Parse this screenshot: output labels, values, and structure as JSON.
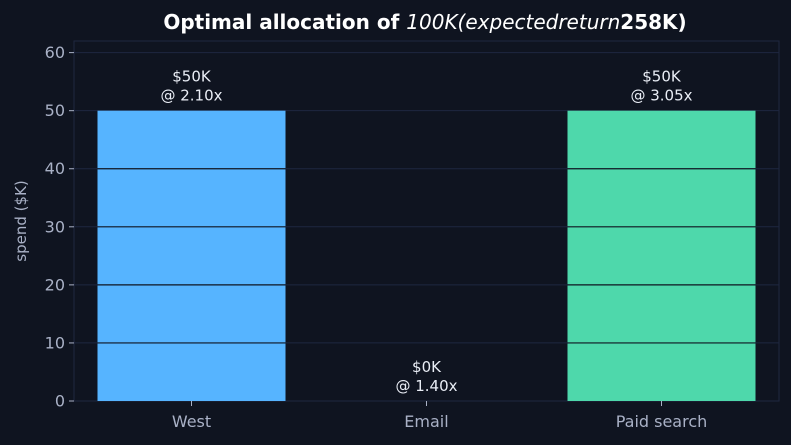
{
  "chart_data": {
    "type": "bar",
    "title": {
      "prefix": "Optimal allocation of ",
      "math": "100K(expectedreturn",
      "suffix": "258K)"
    },
    "ylabel": "spend ($K)",
    "xlabel": "",
    "ylim": [
      0,
      62
    ],
    "yticks": [
      0,
      10,
      20,
      30,
      40,
      50,
      60
    ],
    "grid": true,
    "categories": [
      "West",
      "Email",
      "Paid search"
    ],
    "values": [
      50,
      0,
      50
    ],
    "bar_colors": [
      "#56b4ff",
      "#4ed8ab",
      "#4ed8ab"
    ],
    "data_labels": [
      [
        "$50K",
        "@ 2.10x"
      ],
      [
        "$0K",
        "@ 1.40x"
      ],
      [
        "$50K",
        "@ 3.05x"
      ]
    ]
  },
  "colors": {
    "background": "#0f1420",
    "grid": "#1f2740",
    "gridline_over_bars": "#0f1420",
    "axis": "#2b3450",
    "text": "#a9b1c6",
    "title": "#ffffff"
  }
}
